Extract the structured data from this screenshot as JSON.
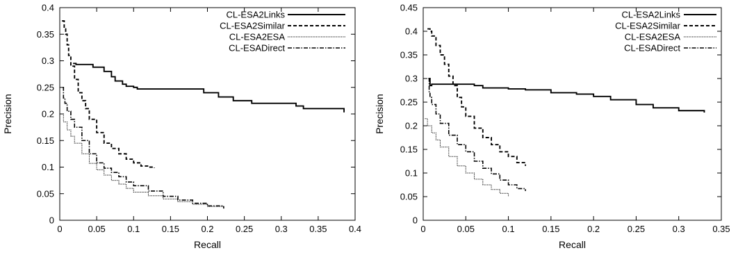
{
  "chart_data": [
    {
      "type": "line",
      "xlabel": "Recall",
      "ylabel": "Precision",
      "xlim": [
        0,
        0.4
      ],
      "ylim": [
        0,
        0.4
      ],
      "xticks": [
        0,
        0.05,
        0.1,
        0.15,
        0.2,
        0.25,
        0.3,
        0.35,
        0.4
      ],
      "yticks": [
        0,
        0.05,
        0.1,
        0.15,
        0.2,
        0.25,
        0.3,
        0.35,
        0.4
      ],
      "xtick_labels": [
        "0",
        "0.05",
        "0.1",
        "0.15",
        "0.2",
        "0.25",
        "0.3",
        "0.35",
        "0.4"
      ],
      "ytick_labels": [
        "0",
        "0.05",
        "0.1",
        "0.15",
        "0.2",
        "0.25",
        "0.3",
        "0.35",
        "0.4"
      ],
      "grid": false,
      "legend_position": "top-right",
      "series": [
        {
          "name": "CL-ESA2Links",
          "style": "solid",
          "x": [
            0.018,
            0.022,
            0.04,
            0.045,
            0.055,
            0.06,
            0.07,
            0.075,
            0.085,
            0.09,
            0.1,
            0.105,
            0.15,
            0.19,
            0.195,
            0.21,
            0.215,
            0.23,
            0.235,
            0.26,
            0.3,
            0.32,
            0.33,
            0.36,
            0.385
          ],
          "y": [
            0.295,
            0.293,
            0.293,
            0.288,
            0.288,
            0.28,
            0.27,
            0.262,
            0.256,
            0.252,
            0.25,
            0.247,
            0.247,
            0.247,
            0.24,
            0.24,
            0.232,
            0.232,
            0.225,
            0.22,
            0.22,
            0.215,
            0.21,
            0.21,
            0.203
          ]
        },
        {
          "name": "CL-ESA2Similar",
          "style": "dashed",
          "x": [
            0.003,
            0.006,
            0.008,
            0.01,
            0.012,
            0.015,
            0.02,
            0.025,
            0.03,
            0.035,
            0.04,
            0.05,
            0.06,
            0.07,
            0.08,
            0.09,
            0.1,
            0.11,
            0.12,
            0.128
          ],
          "y": [
            0.375,
            0.36,
            0.35,
            0.33,
            0.31,
            0.29,
            0.265,
            0.24,
            0.225,
            0.21,
            0.19,
            0.165,
            0.145,
            0.135,
            0.125,
            0.115,
            0.108,
            0.102,
            0.1,
            0.098
          ]
        },
        {
          "name": "CL-ESA2ESA",
          "style": "dotted",
          "x": [
            0.0,
            0.005,
            0.01,
            0.015,
            0.02,
            0.03,
            0.04,
            0.05,
            0.06,
            0.07,
            0.08,
            0.09,
            0.1,
            0.12,
            0.14,
            0.16,
            0.18,
            0.2,
            0.222
          ],
          "y": [
            0.2,
            0.185,
            0.17,
            0.158,
            0.145,
            0.125,
            0.107,
            0.095,
            0.085,
            0.075,
            0.068,
            0.06,
            0.053,
            0.046,
            0.04,
            0.035,
            0.03,
            0.026,
            0.022
          ]
        },
        {
          "name": "CL-ESADirect",
          "style": "dashdot",
          "x": [
            0.004,
            0.005,
            0.007,
            0.01,
            0.015,
            0.02,
            0.03,
            0.04,
            0.05,
            0.06,
            0.07,
            0.08,
            0.09,
            0.1,
            0.12,
            0.14,
            0.16,
            0.18,
            0.2,
            0.222
          ],
          "y": [
            0.25,
            0.23,
            0.22,
            0.205,
            0.19,
            0.175,
            0.15,
            0.125,
            0.108,
            0.098,
            0.09,
            0.082,
            0.072,
            0.065,
            0.055,
            0.045,
            0.038,
            0.032,
            0.027,
            0.022
          ]
        }
      ]
    },
    {
      "type": "line",
      "xlabel": "Recall",
      "ylabel": "Precision",
      "xlim": [
        0,
        0.35
      ],
      "ylim": [
        0,
        0.45
      ],
      "xticks": [
        0,
        0.05,
        0.1,
        0.15,
        0.2,
        0.25,
        0.3,
        0.35
      ],
      "yticks": [
        0,
        0.05,
        0.1,
        0.15,
        0.2,
        0.25,
        0.3,
        0.35,
        0.4,
        0.45
      ],
      "xtick_labels": [
        "0",
        "0.05",
        "0.1",
        "0.15",
        "0.2",
        "0.25",
        "0.3",
        "0.35"
      ],
      "ytick_labels": [
        "0",
        "0.05",
        "0.1",
        "0.15",
        "0.2",
        "0.25",
        "0.3",
        "0.35",
        "0.4",
        "0.45"
      ],
      "grid": false,
      "legend_position": "top-right",
      "series": [
        {
          "name": "CL-ESA2Links",
          "style": "solid",
          "x": [
            0.007,
            0.008,
            0.01,
            0.05,
            0.06,
            0.07,
            0.1,
            0.12,
            0.15,
            0.18,
            0.2,
            0.22,
            0.25,
            0.27,
            0.3,
            0.33
          ],
          "y": [
            0.3,
            0.285,
            0.288,
            0.288,
            0.285,
            0.28,
            0.278,
            0.276,
            0.27,
            0.267,
            0.262,
            0.255,
            0.245,
            0.238,
            0.232,
            0.228
          ]
        },
        {
          "name": "CL-ESA2Similar",
          "style": "dashed",
          "x": [
            0.005,
            0.008,
            0.01,
            0.015,
            0.02,
            0.025,
            0.03,
            0.035,
            0.04,
            0.045,
            0.05,
            0.06,
            0.07,
            0.08,
            0.09,
            0.1,
            0.11,
            0.12
          ],
          "y": [
            0.405,
            0.4,
            0.39,
            0.37,
            0.35,
            0.33,
            0.305,
            0.285,
            0.26,
            0.24,
            0.22,
            0.195,
            0.175,
            0.16,
            0.145,
            0.135,
            0.122,
            0.115
          ]
        },
        {
          "name": "CL-ESA2ESA",
          "style": "dotted",
          "x": [
            0.002,
            0.005,
            0.01,
            0.015,
            0.02,
            0.03,
            0.04,
            0.05,
            0.06,
            0.07,
            0.08,
            0.09,
            0.1
          ],
          "y": [
            0.215,
            0.2,
            0.185,
            0.17,
            0.155,
            0.135,
            0.115,
            0.1,
            0.087,
            0.075,
            0.065,
            0.057,
            0.05
          ]
        },
        {
          "name": "CL-ESADirect",
          "style": "dashdot",
          "x": [
            0.006,
            0.007,
            0.008,
            0.01,
            0.015,
            0.02,
            0.03,
            0.04,
            0.05,
            0.06,
            0.07,
            0.08,
            0.09,
            0.1,
            0.11,
            0.12
          ],
          "y": [
            0.3,
            0.27,
            0.26,
            0.245,
            0.225,
            0.205,
            0.18,
            0.16,
            0.145,
            0.125,
            0.11,
            0.098,
            0.085,
            0.075,
            0.067,
            0.062
          ]
        }
      ]
    }
  ]
}
